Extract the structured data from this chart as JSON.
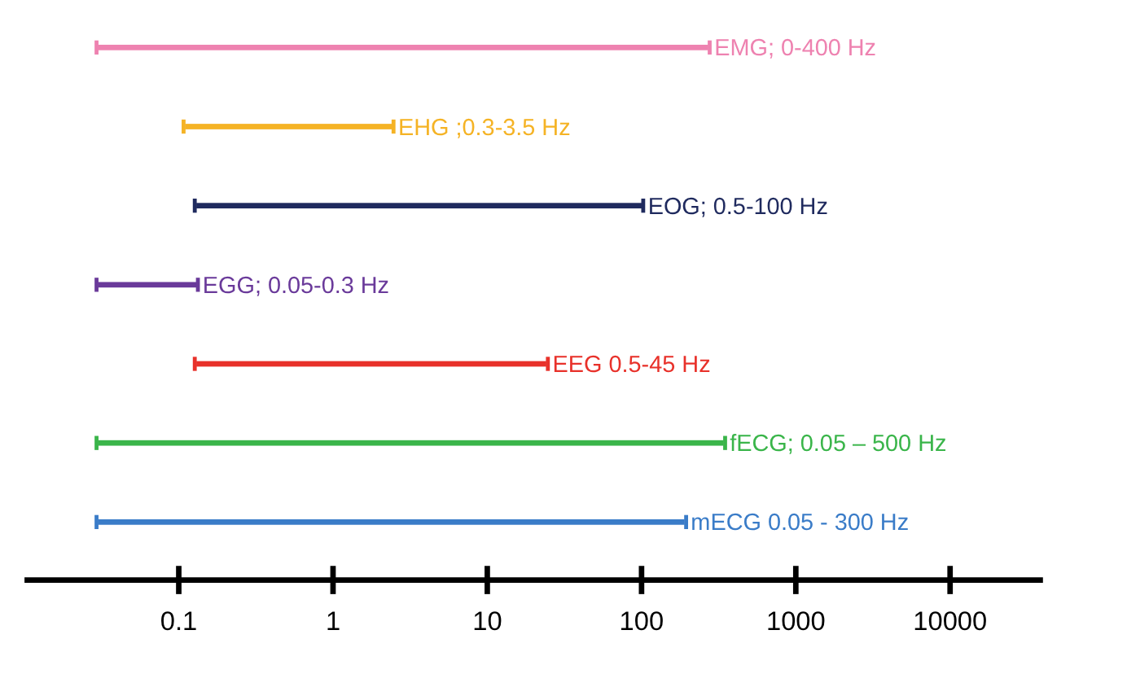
{
  "chart_data": {
    "type": "bar",
    "orientation": "horizontal",
    "log": "x",
    "categories": [
      "EMG; 0-400 Hz",
      "EHG ;0.3-3.5 Hz",
      "EOG; 0.5-100 Hz",
      "EGG; 0.05-0.3 Hz",
      "EEG 0.5-45 Hz",
      "fECG; 0.05 – 500 Hz",
      "mECG 0.05 - 300 Hz"
    ],
    "base": [
      0.03,
      0.11,
      0.13,
      0.03,
      0.13,
      0.03,
      0.03
    ],
    "values": [
      270,
      2.3,
      100,
      0.1,
      24,
      340,
      190
    ],
    "colors": [
      "#ee82b0",
      "#f5b325",
      "#1f2a5e",
      "#6a3a9a",
      "#e8312a",
      "#3ab54a",
      "#3a7cc8"
    ],
    "xlim": [
      0.01,
      40000
    ],
    "xticks": [
      0.1,
      1,
      10,
      100,
      1000,
      10000
    ]
  }
}
